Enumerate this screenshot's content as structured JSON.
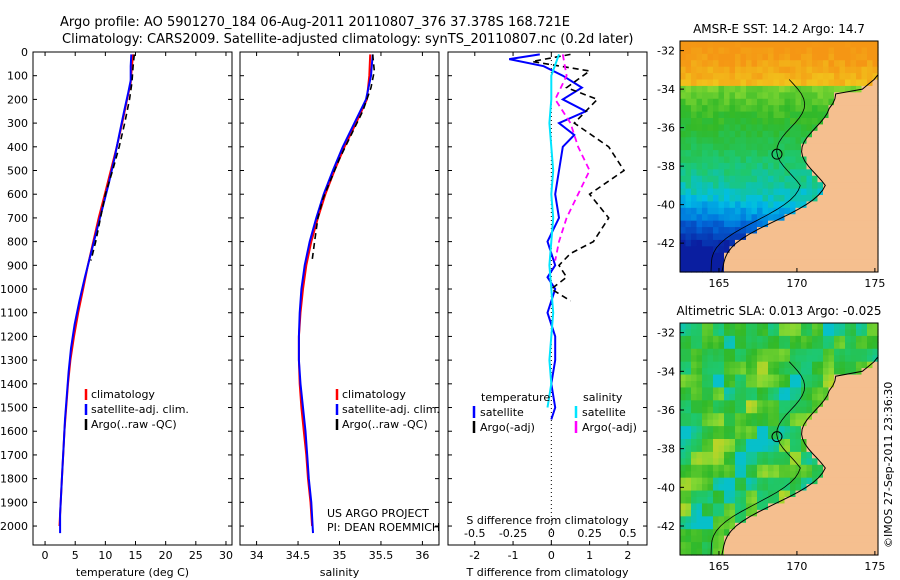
{
  "header": {
    "line1": "Argo profile: AO 5901270_184 06-Aug-2011 20110807_376 37.378S 168.721E",
    "line2": "Climatology: CARS2009. Satellite-adjusted climatology: synTS_20110807.nc (0.2d later)"
  },
  "colors": {
    "climatology": "#ff0000",
    "satellite": "#0000ff",
    "argo": "#000000",
    "sat_salinity": "#00e5ff",
    "argo_salinity": "#ff00ff"
  },
  "chart_data": [
    {
      "id": "temperature",
      "type": "line",
      "xlabel": "temperature (deg C)",
      "xlim": [
        -2,
        31
      ],
      "ylim": [
        2080,
        0
      ],
      "xticks": [
        0,
        5,
        10,
        15,
        20,
        25,
        30
      ],
      "yticks": [
        0,
        100,
        200,
        300,
        400,
        500,
        600,
        700,
        800,
        900,
        1000,
        1100,
        1200,
        1300,
        1400,
        1500,
        1600,
        1700,
        1800,
        1900,
        2000
      ],
      "legend": [
        "climatology",
        "satellite-adj. clim.",
        "Argo(..raw -QC)"
      ],
      "series": [
        {
          "name": "climatology",
          "color": "#ff0000",
          "dash": "",
          "points": [
            [
              14.6,
              10
            ],
            [
              14.4,
              60
            ],
            [
              14.2,
              130
            ],
            [
              13.6,
              200
            ],
            [
              12.8,
              300
            ],
            [
              11.9,
              400
            ],
            [
              10.9,
              500
            ],
            [
              9.9,
              600
            ],
            [
              8.9,
              700
            ],
            [
              8.0,
              800
            ],
            [
              7.1,
              900
            ],
            [
              6.3,
              1000
            ],
            [
              5.5,
              1100
            ],
            [
              4.8,
              1200
            ],
            [
              4.2,
              1300
            ],
            [
              3.8,
              1400
            ],
            [
              3.5,
              1500
            ],
            [
              3.2,
              1600
            ],
            [
              3.0,
              1700
            ],
            [
              2.8,
              1800
            ],
            [
              2.6,
              1900
            ],
            [
              2.4,
              2000
            ]
          ]
        },
        {
          "name": "satellite-adj. clim.",
          "color": "#0000ff",
          "dash": "",
          "points": [
            [
              14.3,
              10
            ],
            [
              14.2,
              60
            ],
            [
              14.2,
              120
            ],
            [
              13.8,
              170
            ],
            [
              13.1,
              250
            ],
            [
              12.3,
              350
            ],
            [
              11.5,
              450
            ],
            [
              10.6,
              550
            ],
            [
              9.6,
              650
            ],
            [
              8.6,
              750
            ],
            [
              7.6,
              850
            ],
            [
              6.6,
              950
            ],
            [
              5.7,
              1050
            ],
            [
              4.9,
              1150
            ],
            [
              4.3,
              1250
            ],
            [
              3.9,
              1350
            ],
            [
              3.6,
              1450
            ],
            [
              3.3,
              1550
            ],
            [
              3.1,
              1650
            ],
            [
              2.9,
              1750
            ],
            [
              2.7,
              1850
            ],
            [
              2.5,
              1950
            ],
            [
              2.5,
              2030
            ]
          ]
        },
        {
          "name": "Argo(..raw -QC)",
          "color": "#000000",
          "dash": "6,4",
          "points": [
            [
              14.8,
              10
            ],
            [
              14.6,
              60
            ],
            [
              14.4,
              130
            ],
            [
              14.0,
              200
            ],
            [
              13.2,
              300
            ],
            [
              12.3,
              400
            ],
            [
              11.2,
              500
            ],
            [
              10.0,
              600
            ],
            [
              9.2,
              700
            ],
            [
              8.4,
              800
            ],
            [
              7.6,
              880
            ]
          ]
        }
      ]
    },
    {
      "id": "salinity",
      "type": "line",
      "xlabel": "salinity",
      "xlim": [
        33.8,
        36.2
      ],
      "ylim": [
        2080,
        0
      ],
      "xticks": [
        34,
        34.5,
        35,
        35.5,
        36
      ],
      "legend": [
        "climatology",
        "satellite-adj. clim.",
        "Argo(..raw -QC)"
      ],
      "annotation": [
        "US ARGO PROJECT",
        "PI: DEAN ROEMMICH"
      ],
      "series": [
        {
          "name": "climatology",
          "color": "#ff0000",
          "dash": "",
          "points": [
            [
              35.37,
              10
            ],
            [
              35.36,
              100
            ],
            [
              35.33,
              200
            ],
            [
              35.2,
              300
            ],
            [
              35.06,
              400
            ],
            [
              34.94,
              500
            ],
            [
              34.83,
              600
            ],
            [
              34.74,
              700
            ],
            [
              34.66,
              800
            ],
            [
              34.6,
              900
            ],
            [
              34.56,
              1000
            ],
            [
              34.53,
              1100
            ],
            [
              34.51,
              1200
            ],
            [
              34.51,
              1300
            ],
            [
              34.52,
              1400
            ],
            [
              34.54,
              1500
            ],
            [
              34.57,
              1600
            ],
            [
              34.6,
              1700
            ],
            [
              34.62,
              1800
            ],
            [
              34.65,
              1900
            ],
            [
              34.67,
              2000
            ]
          ]
        },
        {
          "name": "satellite-adj. clim.",
          "color": "#0000ff",
          "dash": "",
          "points": [
            [
              35.4,
              10
            ],
            [
              35.38,
              100
            ],
            [
              35.32,
              200
            ],
            [
              35.18,
              300
            ],
            [
              35.04,
              400
            ],
            [
              34.92,
              500
            ],
            [
              34.81,
              600
            ],
            [
              34.72,
              700
            ],
            [
              34.64,
              800
            ],
            [
              34.58,
              900
            ],
            [
              34.54,
              1000
            ],
            [
              34.52,
              1100
            ],
            [
              34.51,
              1200
            ],
            [
              34.51,
              1300
            ],
            [
              34.53,
              1400
            ],
            [
              34.56,
              1500
            ],
            [
              34.59,
              1600
            ],
            [
              34.61,
              1700
            ],
            [
              34.63,
              1800
            ],
            [
              34.66,
              1900
            ],
            [
              34.68,
              2030
            ]
          ]
        },
        {
          "name": "Argo(..raw -QC)",
          "color": "#000000",
          "dash": "6,4",
          "points": [
            [
              35.4,
              10
            ],
            [
              35.42,
              80
            ],
            [
              35.38,
              150
            ],
            [
              35.28,
              250
            ],
            [
              35.14,
              350
            ],
            [
              35.0,
              450
            ],
            [
              34.88,
              550
            ],
            [
              34.8,
              620
            ],
            [
              34.74,
              700
            ],
            [
              34.7,
              800
            ],
            [
              34.67,
              880
            ]
          ]
        }
      ]
    },
    {
      "id": "difference",
      "type": "line",
      "xlabel": "T difference from climatology",
      "xlabel_top": "S difference from climatology",
      "xlim": [
        -2.7,
        2.5
      ],
      "ylim": [
        2080,
        0
      ],
      "xticks": [
        -2,
        -1,
        0,
        1,
        2
      ],
      "xticks_top": [
        "-0.5",
        "-0.25",
        "0",
        "0.25",
        "0.5"
      ],
      "legend_headers": [
        "temperature",
        "salinity"
      ],
      "legend": [
        "satellite",
        "Argo(-adj)",
        "satellite",
        "Argo(-adj)"
      ],
      "series": [
        {
          "name": "satellite",
          "color": "#0000ff",
          "dash": "",
          "points": [
            [
              -0.3,
              10
            ],
            [
              -1.1,
              30
            ],
            [
              -0.2,
              60
            ],
            [
              0.3,
              100
            ],
            [
              0.8,
              150
            ],
            [
              0.3,
              200
            ],
            [
              0.9,
              250
            ],
            [
              0.2,
              300
            ],
            [
              0.6,
              350
            ],
            [
              0.3,
              400
            ],
            [
              0.2,
              500
            ],
            [
              0.1,
              600
            ],
            [
              0.2,
              700
            ],
            [
              -0.1,
              800
            ],
            [
              0.1,
              900
            ],
            [
              -0.1,
              950
            ],
            [
              0.1,
              1000
            ],
            [
              -0.1,
              1100
            ],
            [
              0.1,
              1200
            ],
            [
              0.1,
              1300
            ],
            [
              0.0,
              1400
            ],
            [
              0.1,
              1500
            ],
            [
              0.0,
              1550
            ]
          ]
        },
        {
          "name": "Argo(-adj)",
          "color": "#000000",
          "dash": "6,4",
          "points": [
            [
              0.5,
              10
            ],
            [
              -0.5,
              40
            ],
            [
              1.0,
              80
            ],
            [
              0.4,
              150
            ],
            [
              1.2,
              200
            ],
            [
              0.6,
              300
            ],
            [
              1.5,
              400
            ],
            [
              1.9,
              500
            ],
            [
              1.0,
              600
            ],
            [
              1.5,
              700
            ],
            [
              1.1,
              800
            ],
            [
              0.5,
              850
            ],
            [
              0.2,
              900
            ],
            [
              0.4,
              950
            ],
            [
              0.0,
              1000
            ],
            [
              0.5,
              1050
            ]
          ]
        },
        {
          "name": "satellite",
          "color": "#00e5ff",
          "dash": "",
          "points": [
            [
              0.2,
              10
            ],
            [
              0.0,
              100
            ],
            [
              0.0,
              200
            ],
            [
              -0.05,
              300
            ],
            [
              0.0,
              400
            ],
            [
              0.05,
              500
            ],
            [
              0.0,
              600
            ],
            [
              0.05,
              700
            ],
            [
              0.0,
              800
            ],
            [
              -0.05,
              900
            ],
            [
              0.0,
              1000
            ],
            [
              0.05,
              1100
            ],
            [
              0.0,
              1200
            ],
            [
              -0.05,
              1300
            ],
            [
              0.0,
              1400
            ],
            [
              -0.1,
              1500
            ]
          ]
        },
        {
          "name": "Argo(-adj)",
          "color": "#ff00ff",
          "dash": "6,4",
          "points": [
            [
              0.3,
              10
            ],
            [
              0.4,
              100
            ],
            [
              0.1,
              200
            ],
            [
              0.5,
              300
            ],
            [
              0.7,
              400
            ],
            [
              1.0,
              500
            ],
            [
              0.7,
              600
            ],
            [
              0.4,
              700
            ],
            [
              0.2,
              800
            ],
            [
              0.1,
              880
            ]
          ]
        }
      ]
    },
    {
      "id": "sst_map",
      "type": "heatmap",
      "title": "AMSR-E SST: 14.2 Argo: 14.7",
      "xlim": [
        162.5,
        175.2
      ],
      "ylim": [
        -43.5,
        -31.5
      ],
      "xticks": [
        165,
        170,
        175
      ],
      "yticks": [
        -32,
        -34,
        -36,
        -38,
        -40,
        -42
      ],
      "argo_position": [
        168.721,
        -37.378
      ]
    },
    {
      "id": "sla_map",
      "type": "heatmap",
      "title": "Altimetric SLA: 0.013 Argo: -0.025",
      "xlim": [
        162.5,
        175.2
      ],
      "ylim": [
        -43.5,
        -31.5
      ],
      "xticks": [
        165,
        170,
        175
      ],
      "yticks": [
        -32,
        -34,
        -36,
        -38,
        -40,
        -42
      ],
      "argo_position": [
        168.721,
        -37.378
      ]
    }
  ],
  "credit": "©IMOS 27-Sep-2011 23:36:30"
}
